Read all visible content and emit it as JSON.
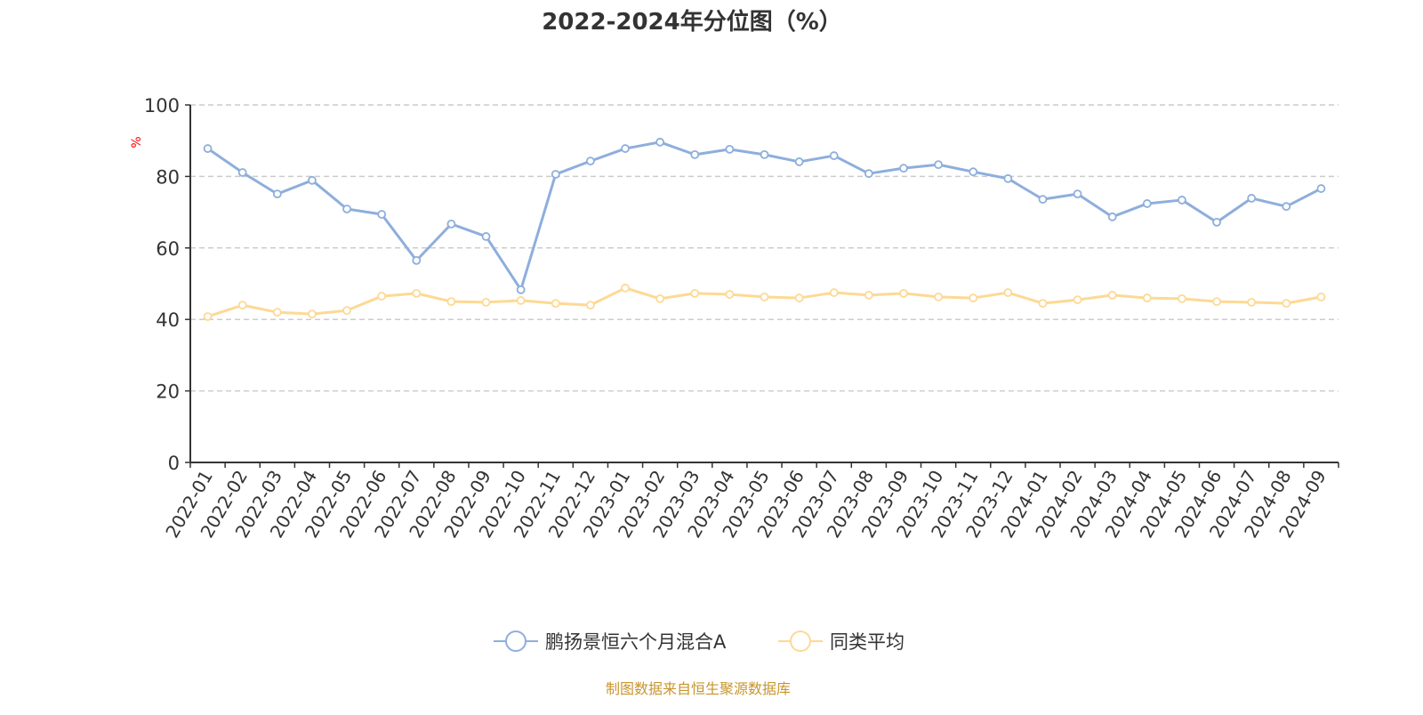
{
  "chart_data": {
    "type": "line",
    "title": "2022-2024年分位图（%）",
    "ylabel": "%",
    "ylim": [
      0,
      100
    ],
    "yticks": [
      0,
      20,
      40,
      60,
      80,
      100
    ],
    "grid": true,
    "legend_position": "bottom",
    "categories": [
      "2022-01",
      "2022-02",
      "2022-03",
      "2022-04",
      "2022-05",
      "2022-06",
      "2022-07",
      "2022-08",
      "2022-09",
      "2022-10",
      "2022-11",
      "2022-12",
      "2023-01",
      "2023-02",
      "2023-03",
      "2023-04",
      "2023-05",
      "2023-06",
      "2023-07",
      "2023-08",
      "2023-09",
      "2023-10",
      "2023-11",
      "2023-12",
      "2024-01",
      "2024-02",
      "2024-03",
      "2024-04",
      "2024-05",
      "2024-06",
      "2024-07",
      "2024-08",
      "2024-09"
    ],
    "series": [
      {
        "name": "鹏扬景恒六个月混合A",
        "color": "#8eaedc",
        "values": [
          87.8,
          81.1,
          75.1,
          78.9,
          70.9,
          69.4,
          56.5,
          66.7,
          63.2,
          48.3,
          80.6,
          84.3,
          87.8,
          89.6,
          86.1,
          87.6,
          86.1,
          84.1,
          85.8,
          80.8,
          82.3,
          83.3,
          81.3,
          79.4,
          73.6,
          75.1,
          68.7,
          72.4,
          73.4,
          67.2,
          73.9,
          71.6,
          76.6
        ]
      },
      {
        "name": "同类平均",
        "color": "#fdd994",
        "values": [
          40.8,
          44.0,
          42.0,
          41.5,
          42.5,
          46.5,
          47.3,
          45.0,
          44.8,
          45.3,
          44.5,
          44.0,
          48.8,
          45.8,
          47.3,
          47.0,
          46.3,
          46.0,
          47.5,
          46.8,
          47.3,
          46.3,
          46.0,
          47.5,
          44.5,
          45.5,
          46.8,
          46.0,
          45.8,
          45.0,
          44.8,
          44.5,
          46.3
        ]
      }
    ]
  },
  "source": "制图数据来自恒生聚源数据库"
}
